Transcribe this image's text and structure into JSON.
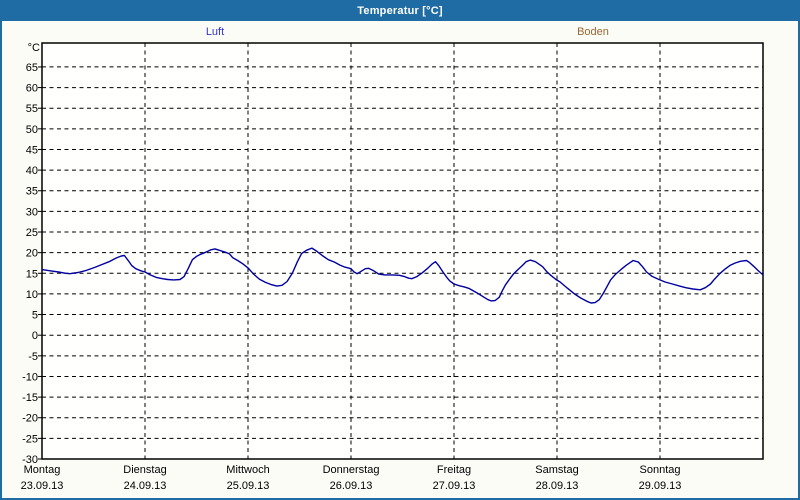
{
  "window": {
    "title": "Temperatur [°C]"
  },
  "colors": {
    "chrome_blue": "#1e6ca3",
    "background": "#fcfcf7",
    "plot_background": "#fffffd",
    "grid": "#000000",
    "luft_line": "#0000a0",
    "luft_label": "#3333cc",
    "boden_label": "#996633"
  },
  "chart_data": {
    "type": "line",
    "title": "Temperatur [°C]",
    "grid": "dashed",
    "legend_position": "top",
    "y_axis": {
      "unit_label": "°C",
      "min": -30,
      "max_label": 65,
      "step": 5,
      "frame_top_value": 70
    },
    "x_axis": {
      "days_per_view": 7,
      "days": [
        {
          "name": "Montag",
          "date": "23.09.13"
        },
        {
          "name": "Dienstag",
          "date": "24.09.13"
        },
        {
          "name": "Mittwoch",
          "date": "25.09.13"
        },
        {
          "name": "Donnerstag",
          "date": "26.09.13"
        },
        {
          "name": "Freitag",
          "date": "27.09.13"
        },
        {
          "name": "Samstag",
          "date": "28.09.13"
        },
        {
          "name": "Sonntag",
          "date": "29.09.13"
        }
      ]
    },
    "series": [
      {
        "name": "Luft",
        "label_color": "#3333cc",
        "line_color": "#0000a0",
        "points": [
          [
            0.0,
            15.9
          ],
          [
            0.08,
            15.6
          ],
          [
            0.16,
            15.3
          ],
          [
            0.23,
            15.0
          ],
          [
            0.27,
            14.9
          ],
          [
            0.35,
            15.2
          ],
          [
            0.43,
            15.7
          ],
          [
            0.51,
            16.4
          ],
          [
            0.58,
            17.1
          ],
          [
            0.66,
            17.9
          ],
          [
            0.72,
            18.7
          ],
          [
            0.77,
            19.2
          ],
          [
            0.8,
            19.3
          ],
          [
            0.84,
            18.0
          ],
          [
            0.87,
            16.9
          ],
          [
            0.91,
            16.1
          ],
          [
            0.96,
            15.6
          ],
          [
            1.0,
            15.3
          ],
          [
            1.05,
            14.6
          ],
          [
            1.11,
            14.0
          ],
          [
            1.17,
            13.7
          ],
          [
            1.22,
            13.5
          ],
          [
            1.28,
            13.4
          ],
          [
            1.34,
            13.5
          ],
          [
            1.38,
            14.2
          ],
          [
            1.42,
            16.2
          ],
          [
            1.46,
            18.3
          ],
          [
            1.5,
            19.1
          ],
          [
            1.54,
            19.6
          ],
          [
            1.59,
            20.1
          ],
          [
            1.64,
            20.7
          ],
          [
            1.68,
            20.9
          ],
          [
            1.73,
            20.5
          ],
          [
            1.78,
            20.1
          ],
          [
            1.82,
            19.7
          ],
          [
            1.85,
            18.8
          ],
          [
            1.9,
            18.1
          ],
          [
            1.95,
            17.3
          ],
          [
            2.0,
            16.3
          ],
          [
            2.05,
            14.9
          ],
          [
            2.11,
            13.6
          ],
          [
            2.17,
            12.8
          ],
          [
            2.22,
            12.3
          ],
          [
            2.28,
            11.9
          ],
          [
            2.33,
            12.1
          ],
          [
            2.38,
            13.0
          ],
          [
            2.43,
            15.0
          ],
          [
            2.48,
            17.8
          ],
          [
            2.52,
            19.8
          ],
          [
            2.57,
            20.6
          ],
          [
            2.62,
            21.1
          ],
          [
            2.67,
            20.3
          ],
          [
            2.72,
            19.3
          ],
          [
            2.78,
            18.3
          ],
          [
            2.84,
            17.7
          ],
          [
            2.89,
            17.0
          ],
          [
            2.94,
            16.5
          ],
          [
            3.0,
            16.1
          ],
          [
            3.03,
            15.3
          ],
          [
            3.06,
            14.9
          ],
          [
            3.1,
            15.5
          ],
          [
            3.14,
            16.1
          ],
          [
            3.17,
            16.2
          ],
          [
            3.22,
            15.6
          ],
          [
            3.27,
            14.8
          ],
          [
            3.33,
            14.6
          ],
          [
            3.4,
            14.6
          ],
          [
            3.47,
            14.5
          ],
          [
            3.52,
            14.2
          ],
          [
            3.56,
            13.8
          ],
          [
            3.59,
            13.7
          ],
          [
            3.64,
            14.2
          ],
          [
            3.69,
            15.1
          ],
          [
            3.74,
            16.1
          ],
          [
            3.79,
            17.3
          ],
          [
            3.82,
            17.8
          ],
          [
            3.85,
            16.9
          ],
          [
            3.89,
            15.4
          ],
          [
            3.93,
            14.0
          ],
          [
            3.96,
            13.1
          ],
          [
            4.0,
            12.4
          ],
          [
            4.05,
            12.0
          ],
          [
            4.1,
            11.7
          ],
          [
            4.15,
            11.3
          ],
          [
            4.19,
            10.7
          ],
          [
            4.24,
            10.0
          ],
          [
            4.29,
            9.2
          ],
          [
            4.33,
            8.6
          ],
          [
            4.36,
            8.3
          ],
          [
            4.4,
            8.4
          ],
          [
            4.44,
            9.2
          ],
          [
            4.47,
            10.8
          ],
          [
            4.5,
            12.2
          ],
          [
            4.54,
            13.6
          ],
          [
            4.58,
            14.9
          ],
          [
            4.62,
            15.9
          ],
          [
            4.66,
            16.8
          ],
          [
            4.7,
            17.8
          ],
          [
            4.74,
            18.2
          ],
          [
            4.79,
            17.8
          ],
          [
            4.82,
            17.3
          ],
          [
            4.86,
            16.6
          ],
          [
            4.9,
            15.4
          ],
          [
            4.94,
            14.5
          ],
          [
            4.99,
            13.5
          ],
          [
            5.03,
            12.9
          ],
          [
            5.1,
            11.4
          ],
          [
            5.17,
            10.0
          ],
          [
            5.23,
            9.0
          ],
          [
            5.29,
            8.2
          ],
          [
            5.33,
            7.8
          ],
          [
            5.37,
            7.9
          ],
          [
            5.41,
            8.6
          ],
          [
            5.45,
            10.2
          ],
          [
            5.49,
            12.0
          ],
          [
            5.52,
            13.4
          ],
          [
            5.57,
            14.8
          ],
          [
            5.62,
            15.9
          ],
          [
            5.67,
            16.9
          ],
          [
            5.71,
            17.6
          ],
          [
            5.74,
            18.1
          ],
          [
            5.79,
            17.7
          ],
          [
            5.83,
            16.6
          ],
          [
            5.87,
            15.3
          ],
          [
            5.92,
            14.3
          ],
          [
            5.99,
            13.5
          ],
          [
            6.05,
            12.9
          ],
          [
            6.12,
            12.4
          ],
          [
            6.19,
            11.9
          ],
          [
            6.25,
            11.5
          ],
          [
            6.32,
            11.2
          ],
          [
            6.39,
            11.0
          ],
          [
            6.44,
            11.5
          ],
          [
            6.49,
            12.4
          ],
          [
            6.53,
            13.6
          ],
          [
            6.58,
            14.9
          ],
          [
            6.63,
            16.0
          ],
          [
            6.68,
            16.9
          ],
          [
            6.73,
            17.5
          ],
          [
            6.78,
            17.9
          ],
          [
            6.84,
            18.1
          ],
          [
            6.87,
            17.6
          ],
          [
            6.91,
            16.7
          ],
          [
            6.95,
            15.7
          ],
          [
            7.0,
            14.6
          ]
        ]
      },
      {
        "name": "Boden",
        "label_color": "#996633",
        "line_color": "#996633",
        "points": []
      }
    ]
  }
}
